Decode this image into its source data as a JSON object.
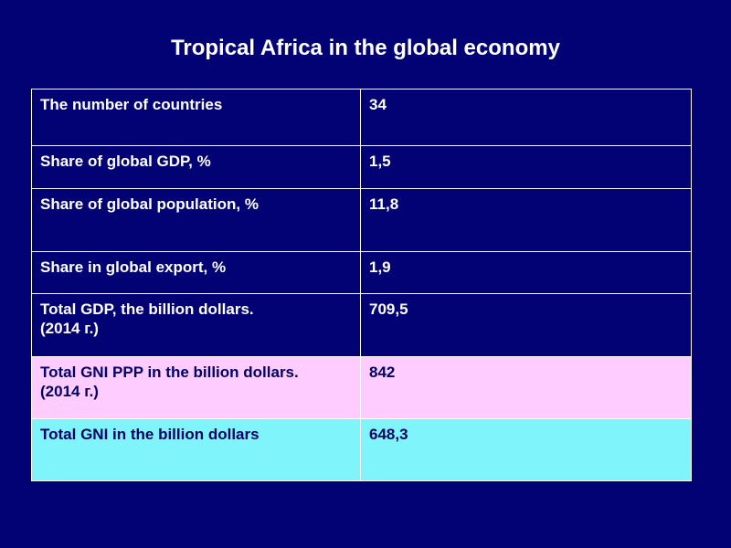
{
  "title": "Tropical Africa in the global economy",
  "rows": [
    {
      "label": "The number of countries",
      "value": "34"
    },
    {
      "label": "Share of global GDP, %",
      "value": "1,5"
    },
    {
      "label": "Share of global population, %",
      "value": "11,8"
    },
    {
      "label": "Share in global export, %",
      "value": "1,9"
    },
    {
      "label": "Total GDP, the billion  dollars.\n(2014 г.)",
      "value": "709,5"
    },
    {
      "label": "Total GNI PPP in the billion dollars.\n(2014 г.)",
      "value": "842"
    },
    {
      "label": "Total GNI in the billion dollars",
      "value": "648,3"
    }
  ],
  "colors": {
    "background": "#020275",
    "highlight_pink": "#ffccff",
    "highlight_cyan": "#80f4fb",
    "text_light": "#ffffff",
    "text_dark": "#000066"
  }
}
